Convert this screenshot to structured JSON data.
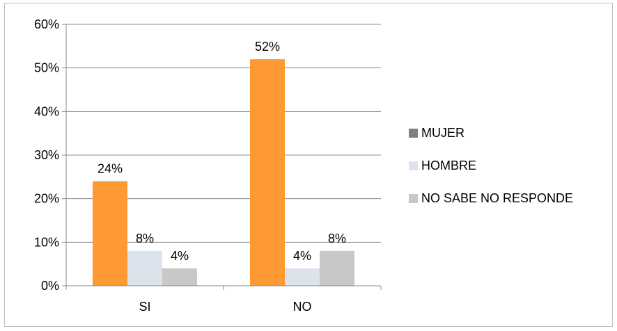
{
  "chart_data": {
    "type": "bar",
    "categories": [
      "SI",
      "NO"
    ],
    "series": [
      {
        "name": "MUJER",
        "values": [
          24,
          52
        ],
        "color": "#ff9933",
        "legend_color": "#808080"
      },
      {
        "name": "HOMBRE",
        "values": [
          8,
          4
        ],
        "color": "#dce3ed",
        "legend_color": "#dce3ed"
      },
      {
        "name": "NO SABE NO RESPONDE",
        "values": [
          4,
          8
        ],
        "color": "#c8c8c8",
        "legend_color": "#c8c8c8"
      }
    ],
    "data_labels": [
      [
        "24%",
        "52%"
      ],
      [
        "8%",
        "4%"
      ],
      [
        "4%",
        "8%"
      ]
    ],
    "y_ticks": [
      0,
      10,
      20,
      30,
      40,
      50,
      60
    ],
    "y_tick_labels": [
      "0%",
      "10%",
      "20%",
      "30%",
      "40%",
      "50%",
      "60%"
    ],
    "ylim": [
      0,
      60
    ],
    "grid": true,
    "legend_position": "right",
    "title": "",
    "xlabel": "",
    "ylabel": ""
  }
}
